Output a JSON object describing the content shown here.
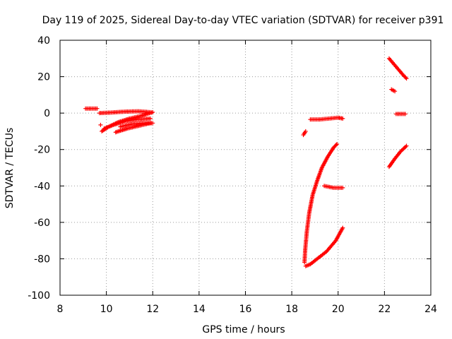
{
  "chart_data": {
    "type": "scatter",
    "title": "Day 119 of 2025, Sidereal Day-to-day VTEC variation (SDTVAR) for receiver p391",
    "xlabel": "GPS time / hours",
    "ylabel": "SDTVAR / TECUs",
    "xlim": [
      8,
      24
    ],
    "ylim": [
      -100,
      40
    ],
    "xticks": [
      8,
      10,
      12,
      14,
      16,
      18,
      20,
      22,
      24
    ],
    "yticks": [
      -100,
      -80,
      -60,
      -40,
      -20,
      0,
      20,
      40
    ],
    "grid": true,
    "marker": "+",
    "color": "#ff0000",
    "segments": [
      {
        "x": [
          9.1,
          9.6
        ],
        "y": [
          2.5,
          2.5
        ]
      },
      {
        "x": [
          9.7,
          10.2,
          10.8,
          11.4,
          11.9
        ],
        "y": [
          0,
          0.3,
          0.8,
          1.0,
          0.5
        ]
      },
      {
        "x": [
          9.75
        ],
        "y": [
          -6.5
        ]
      },
      {
        "x": [
          9.8,
          10.1,
          10.5,
          11.0,
          11.5,
          12.0
        ],
        "y": [
          -10,
          -7.5,
          -5,
          -3,
          -1.5,
          0.5
        ]
      },
      {
        "x": [
          9.9,
          10.3,
          10.8,
          11.3,
          11.9
        ],
        "y": [
          -8.5,
          -6.5,
          -4.5,
          -3.5,
          -3
        ]
      },
      {
        "x": [
          10.4,
          10.9,
          11.4,
          11.9
        ],
        "y": [
          -10.5,
          -8.5,
          -7,
          -5.5
        ]
      },
      {
        "x": [
          10.6,
          11.1,
          11.6,
          12.0
        ],
        "y": [
          -7.5,
          -6,
          -5.5,
          -5.5
        ]
      },
      {
        "x": [
          18.5,
          18.6
        ],
        "y": [
          -12,
          -10
        ]
      },
      {
        "x": [
          18.55,
          18.58,
          18.65,
          18.75,
          18.9,
          19.1,
          19.3,
          19.55,
          19.8,
          19.95
        ],
        "y": [
          -82,
          -75,
          -65,
          -55,
          -45,
          -37,
          -30,
          -24,
          -19,
          -17
        ]
      },
      {
        "x": [
          18.6,
          18.8,
          19.1,
          19.5,
          19.9,
          20.2
        ],
        "y": [
          -84,
          -83,
          -80,
          -76,
          -70,
          -63
        ]
      },
      {
        "x": [
          18.8,
          19.2,
          19.6,
          20.0,
          20.2
        ],
        "y": [
          -3.5,
          -3.5,
          -3,
          -2.5,
          -3
        ]
      },
      {
        "x": [
          19.4,
          19.8,
          20.2
        ],
        "y": [
          -40,
          -41,
          -41
        ]
      },
      {
        "x": [
          22.2,
          22.5,
          22.8,
          22.95
        ],
        "y": [
          30,
          25.5,
          21,
          19
        ]
      },
      {
        "x": [
          22.3,
          22.45
        ],
        "y": [
          13,
          12
        ]
      },
      {
        "x": [
          22.5,
          22.9
        ],
        "y": [
          -0.5,
          -0.5
        ]
      },
      {
        "x": [
          22.2,
          22.45,
          22.7,
          22.95
        ],
        "y": [
          -29.5,
          -25,
          -21,
          -18
        ]
      }
    ]
  }
}
